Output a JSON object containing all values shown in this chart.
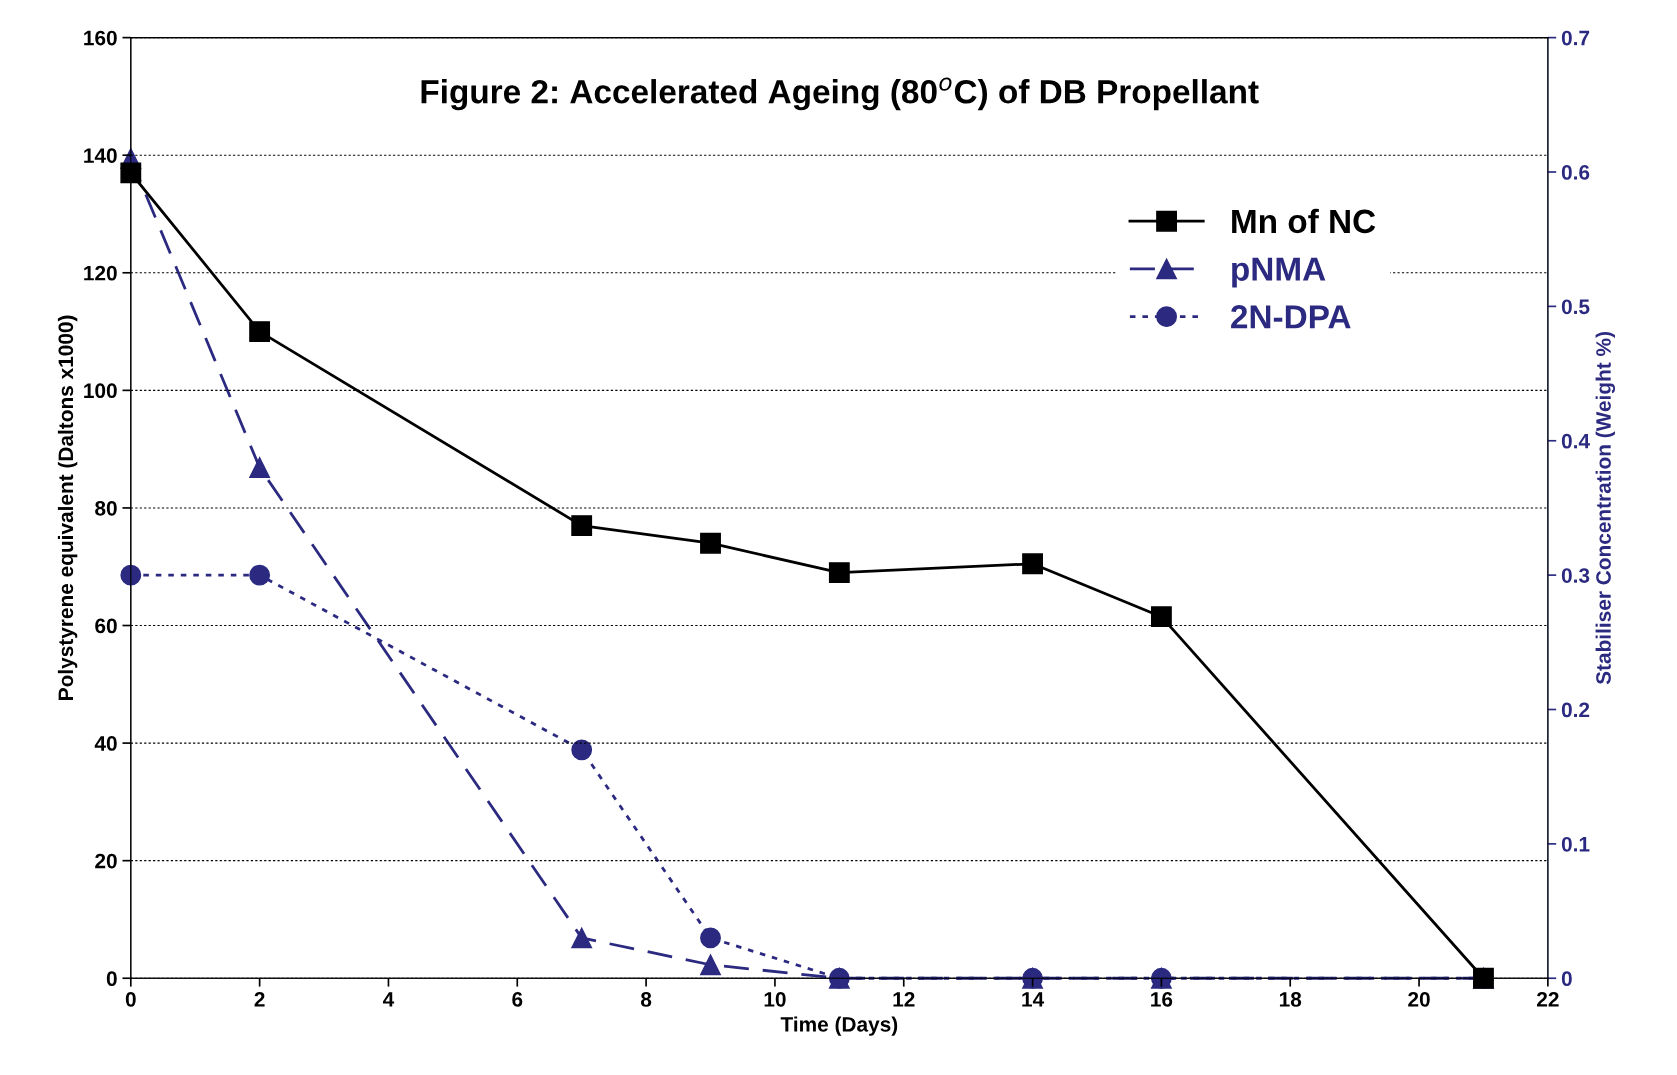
{
  "chart_data": {
    "type": "line",
    "title": "Figure 2: Accelerated Ageing (80$^{o}$C) of DB Propellant",
    "xlabel": "Time (Days)",
    "ylabel": "Polystyrene equivalent (Daltons x1000)",
    "y2label": "Stabiliser Concentration (Weight %)",
    "xlim": [
      0,
      22
    ],
    "xticks": [
      0,
      2,
      4,
      6,
      8,
      10,
      12,
      14,
      16,
      18,
      20,
      22
    ],
    "ylim": [
      0,
      160
    ],
    "yticks": [
      0,
      20,
      40,
      60,
      80,
      100,
      120,
      140,
      160
    ],
    "y2lim": [
      0,
      0.7
    ],
    "y2ticks": [
      0,
      0.1,
      0.2,
      0.3,
      0.4,
      0.5,
      0.6,
      0.7
    ],
    "grid": "y",
    "legend": "top right",
    "series": [
      {
        "name": "Mn of NC",
        "color": "#000000",
        "marker": "square",
        "line_style": "solid",
        "x": [
          0,
          2,
          7,
          9,
          11,
          14,
          16,
          21
        ],
        "values": [
          137,
          110,
          77,
          74,
          69,
          70.5,
          61.5,
          0
        ]
      },
      {
        "name": "pNMA",
        "color": "#2b2a80",
        "marker": "triangle",
        "line_style": "dashed",
        "axis": "y2",
        "x": [
          0,
          2,
          7,
          9,
          11,
          14,
          16,
          21
        ],
        "values": [
          0.61,
          0.38,
          0.03,
          0.01,
          0,
          0,
          0,
          0
        ]
      },
      {
        "name": "2N-DPA",
        "color": "#2b2a80",
        "marker": "circle",
        "line_style": "dotted",
        "axis": "y2",
        "x": [
          0,
          2,
          7,
          9,
          11,
          14,
          16,
          21
        ],
        "values": [
          0.3,
          0.3,
          0.17,
          0.03,
          0,
          0,
          0,
          0
        ]
      }
    ]
  }
}
